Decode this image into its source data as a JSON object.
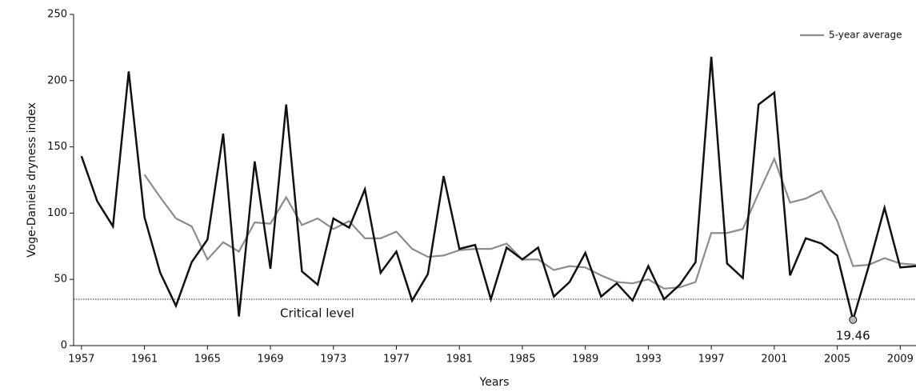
{
  "chart_data": {
    "type": "line",
    "x_label": "Years",
    "y_label": "Voge-Daniels dryness index",
    "x": [
      1957,
      1958,
      1959,
      1960,
      1961,
      1962,
      1963,
      1964,
      1965,
      1966,
      1967,
      1968,
      1969,
      1970,
      1971,
      1972,
      1973,
      1974,
      1975,
      1976,
      1977,
      1978,
      1979,
      1980,
      1981,
      1982,
      1983,
      1984,
      1985,
      1986,
      1987,
      1988,
      1989,
      1990,
      1991,
      1992,
      1993,
      1994,
      1995,
      1996,
      1997,
      1998,
      1999,
      2000,
      2001,
      2002,
      2003,
      2004,
      2005,
      2006,
      2007,
      2008,
      2009,
      2010
    ],
    "series": [
      {
        "color": "#111111",
        "values": [
          143,
          109,
          90,
          207,
          97,
          55,
          30,
          63,
          80,
          160,
          22,
          139,
          58,
          182,
          56,
          46,
          96,
          89,
          118,
          55,
          71,
          34,
          54,
          128,
          73,
          76,
          35,
          74,
          65,
          74,
          37,
          48,
          70,
          37,
          47,
          34,
          60,
          35,
          46,
          63,
          218,
          62,
          51,
          182,
          191,
          53,
          81,
          77,
          68,
          19.46,
          60,
          104,
          59,
          60
        ]
      },
      {
        "name": "5-year average",
        "color": "#8c8c8c",
        "values": [
          null,
          null,
          null,
          null,
          129,
          112,
          96,
          90,
          65,
          78,
          71,
          93,
          92,
          112,
          91,
          96,
          88,
          94,
          81,
          81,
          86,
          73,
          67,
          68,
          72,
          73,
          73,
          77,
          65,
          65,
          57,
          60,
          59,
          53,
          48,
          47,
          50,
          43,
          44,
          48,
          85,
          85,
          88,
          115,
          141,
          108,
          111,
          117,
          94,
          60,
          61,
          66,
          62,
          61
        ]
      }
    ],
    "xlim": [
      1956.5,
      2010
    ],
    "xticks": [
      1957,
      1961,
      1965,
      1969,
      1973,
      1977,
      1981,
      1985,
      1989,
      1993,
      1997,
      2001,
      2005,
      2009
    ],
    "ylim": [
      0,
      250
    ],
    "yticks": [
      0,
      50,
      100,
      150,
      200,
      250
    ],
    "critical_level": {
      "value": 35,
      "label": "Critical level"
    },
    "annotation": {
      "x": 2006,
      "value": 19.46
    },
    "legend": "top-right"
  }
}
